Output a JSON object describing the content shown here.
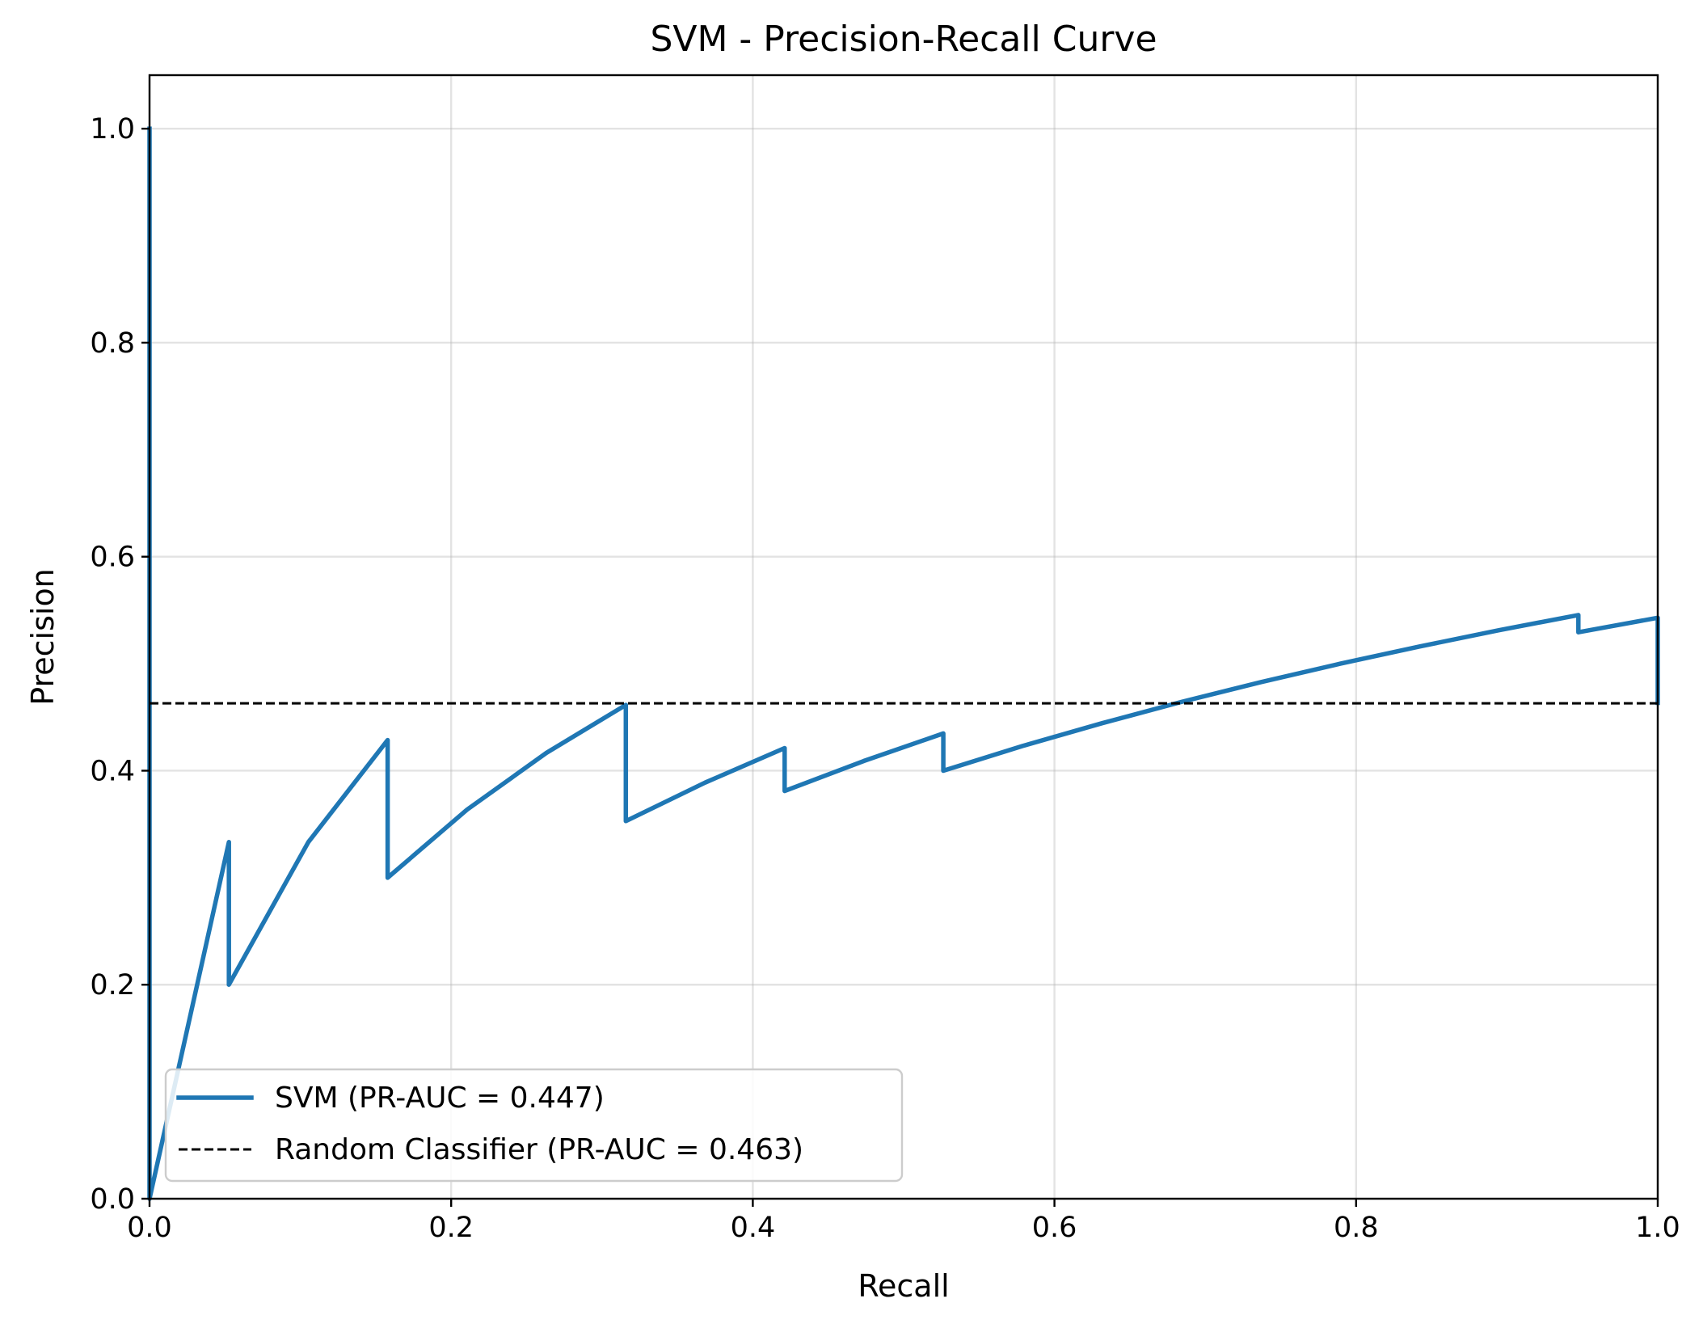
{
  "chart_data": {
    "type": "line",
    "title": "SVM - Precision-Recall Curve",
    "xlabel": "Recall",
    "ylabel": "Precision",
    "xlim": [
      0.0,
      1.0
    ],
    "ylim": [
      0.0,
      1.05
    ],
    "xticks": [
      "0.0",
      "0.2",
      "0.4",
      "0.6",
      "0.8",
      "1.0"
    ],
    "yticks": [
      "0.0",
      "0.2",
      "0.4",
      "0.6",
      "0.8",
      "1.0"
    ],
    "grid": true,
    "legend_position": "lower-left",
    "series": [
      {
        "name": "SVM (PR-AUC = 0.447)",
        "color": "#1f77b4",
        "style": "solid",
        "x": [
          0.0,
          0.0,
          0.0526,
          0.0526,
          0.1053,
          0.1579,
          0.1579,
          0.2105,
          0.2632,
          0.3158,
          0.3158,
          0.3684,
          0.4211,
          0.4211,
          0.4737,
          0.5263,
          0.5263,
          0.5789,
          0.6316,
          0.6842,
          0.7368,
          0.7895,
          0.8421,
          0.8947,
          0.9474,
          0.9474,
          1.0,
          1.0
        ],
        "y": [
          1.0,
          0.0,
          0.3333,
          0.2,
          0.3333,
          0.4286,
          0.3,
          0.3636,
          0.4167,
          0.4615,
          0.3529,
          0.3889,
          0.4211,
          0.381,
          0.4091,
          0.4348,
          0.4,
          0.4231,
          0.4444,
          0.4643,
          0.4828,
          0.5,
          0.5161,
          0.5313,
          0.5455,
          0.5294,
          0.5429,
          0.4634
        ]
      },
      {
        "name": "Random Classifier (PR-AUC = 0.463)",
        "color": "#000000",
        "style": "dashed",
        "x": [
          0.0,
          1.0
        ],
        "y": [
          0.463,
          0.463
        ]
      }
    ]
  }
}
